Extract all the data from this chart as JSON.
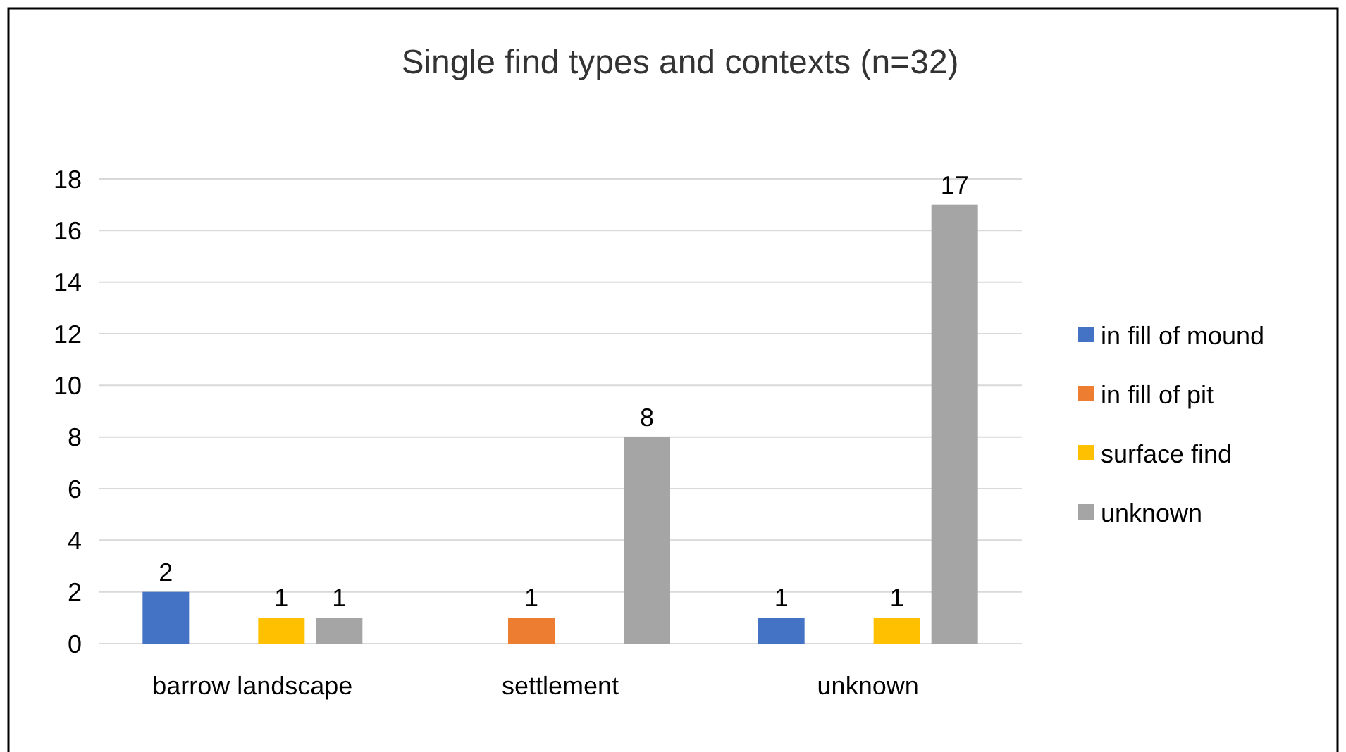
{
  "chart_data": {
    "type": "bar",
    "title": "Single find types and contexts (n=32)",
    "categories": [
      "barrow landscape",
      "settlement",
      "unknown"
    ],
    "series": [
      {
        "name": "in fill of mound",
        "color": "#4472c4",
        "values": [
          2,
          null,
          1
        ]
      },
      {
        "name": "in fill of pit",
        "color": "#ed7d31",
        "values": [
          null,
          1,
          null
        ]
      },
      {
        "name": "surface find",
        "color": "#ffc000",
        "values": [
          1,
          null,
          1
        ]
      },
      {
        "name": "unknown",
        "color": "#a5a5a5",
        "values": [
          1,
          8,
          17
        ]
      }
    ],
    "ylim": [
      0,
      18
    ],
    "yticks": [
      0,
      2,
      4,
      6,
      8,
      10,
      12,
      14,
      16,
      18
    ],
    "grid": "y",
    "legend": "right",
    "data_labels": true
  }
}
